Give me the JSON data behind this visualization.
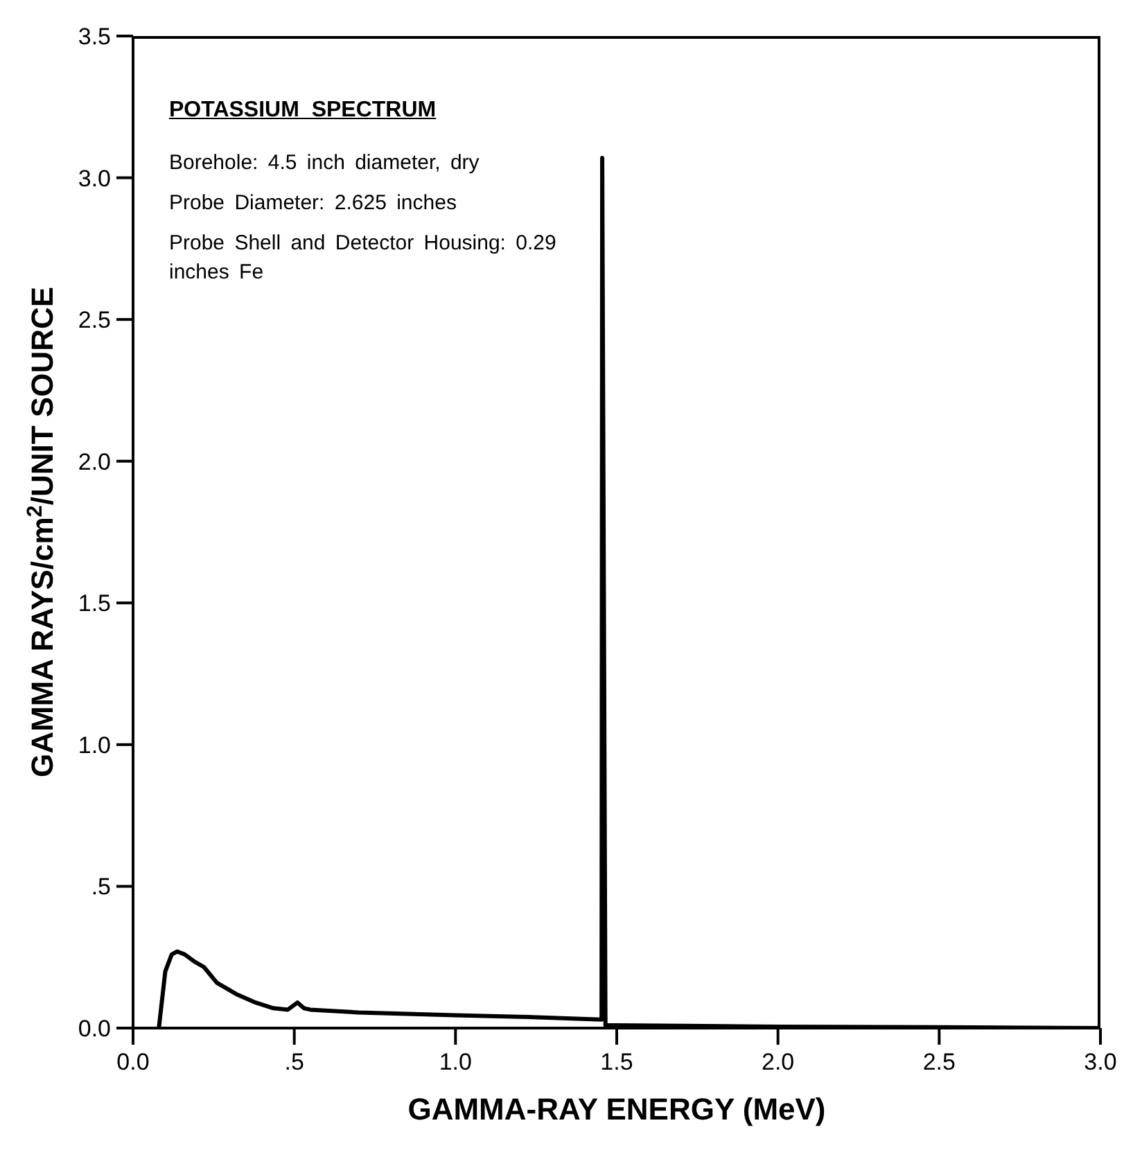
{
  "chart_data": {
    "type": "line",
    "title": "POTASSIUM  SPECTRUM",
    "xlabel": "GAMMA-RAY  ENERGY  (MeV)",
    "ylabel": "GAMMA  RAYS/cm$^{2}$/UNIT  SOURCE",
    "annotations": [
      "Borehole: 4.5 inch diameter, dry",
      "Probe Diameter: 2.625 inches",
      "Probe Shell and Detector Housing: 0.29 inches Fe"
    ],
    "series": [
      {
        "color": "#000000",
        "x": [
          0.08,
          0.1,
          0.12,
          0.137,
          0.16,
          0.19,
          0.22,
          0.26,
          0.32,
          0.38,
          0.435,
          0.48,
          0.51,
          0.53,
          0.55,
          0.7,
          0.85,
          1.0,
          1.2,
          1.453,
          1.455,
          1.465,
          1.5,
          2.0,
          2.5,
          3.0
        ],
        "values": [
          0.0,
          0.2,
          0.26,
          0.27,
          0.26,
          0.235,
          0.215,
          0.16,
          0.12,
          0.09,
          0.07,
          0.065,
          0.09,
          0.07,
          0.065,
          0.055,
          0.05,
          0.045,
          0.04,
          0.03,
          3.07,
          0.01,
          0.01,
          0.005,
          0.003,
          0.0
        ]
      }
    ],
    "xlim": [
      0,
      3
    ],
    "ylim": [
      0,
      3.5
    ],
    "xticks": [
      {
        "value": 0,
        "label": "0.0"
      },
      {
        "value": 0.5,
        "label": ".5"
      },
      {
        "value": 1,
        "label": "1.0"
      },
      {
        "value": 1.5,
        "label": "1.5"
      },
      {
        "value": 2,
        "label": "2.0"
      },
      {
        "value": 2.5,
        "label": "2.5"
      },
      {
        "value": 3,
        "label": "3.0"
      }
    ],
    "yticks": [
      {
        "value": 0,
        "label": "0.0"
      },
      {
        "value": 0.5,
        "label": ".5"
      },
      {
        "value": 1,
        "label": "1.0"
      },
      {
        "value": 1.5,
        "label": "1.5"
      },
      {
        "value": 2,
        "label": "2.0"
      },
      {
        "value": 2.5,
        "label": "2.5"
      },
      {
        "value": 3,
        "label": "3.0"
      },
      {
        "value": 3.5,
        "label": "3.5"
      }
    ],
    "grid": false,
    "marker": "none",
    "line_style": "solid"
  }
}
